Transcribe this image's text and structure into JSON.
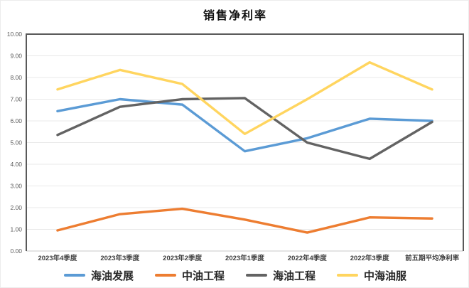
{
  "chart_data": {
    "type": "line",
    "title": "销售净利率",
    "categories": [
      "2023年4季度",
      "2023年3季度",
      "2023年2季度",
      "2023年1季度",
      "2022年4季度",
      "2022年3季度",
      "前五期平均净利率"
    ],
    "series": [
      {
        "name": "海油发展",
        "color": "#5B9BD5",
        "values": [
          6.45,
          7.0,
          6.75,
          4.6,
          5.2,
          6.1,
          6.0
        ]
      },
      {
        "name": "中油工程",
        "color": "#ED7D31",
        "values": [
          0.95,
          1.7,
          1.95,
          1.45,
          0.85,
          1.55,
          1.5
        ]
      },
      {
        "name": "海油工程",
        "color": "#636363",
        "values": [
          5.35,
          6.65,
          7.0,
          7.05,
          5.0,
          4.25,
          5.95
        ]
      },
      {
        "name": "中海油服",
        "color": "#FFD55F",
        "values": [
          7.45,
          8.35,
          7.7,
          5.4,
          7.0,
          8.7,
          7.45
        ]
      }
    ],
    "xlabel": "",
    "ylabel": "",
    "ylim": [
      0,
      10
    ],
    "y_step": 1,
    "y_tick_labels": [
      "0.00",
      "1.00",
      "2.00",
      "3.00",
      "4.00",
      "5.00",
      "6.00",
      "7.00",
      "8.00",
      "9.00",
      "10.00"
    ],
    "grid": true,
    "legend_position": "bottom",
    "colors": {
      "axis_border": "#595959",
      "bottom_axis": "#c9c9c9",
      "gridline": "#e8e8e8",
      "y_tick_text": "#595959",
      "x_tick_text": "#3f3f3f",
      "title_text": "#111111",
      "background": "#ffffff"
    }
  }
}
